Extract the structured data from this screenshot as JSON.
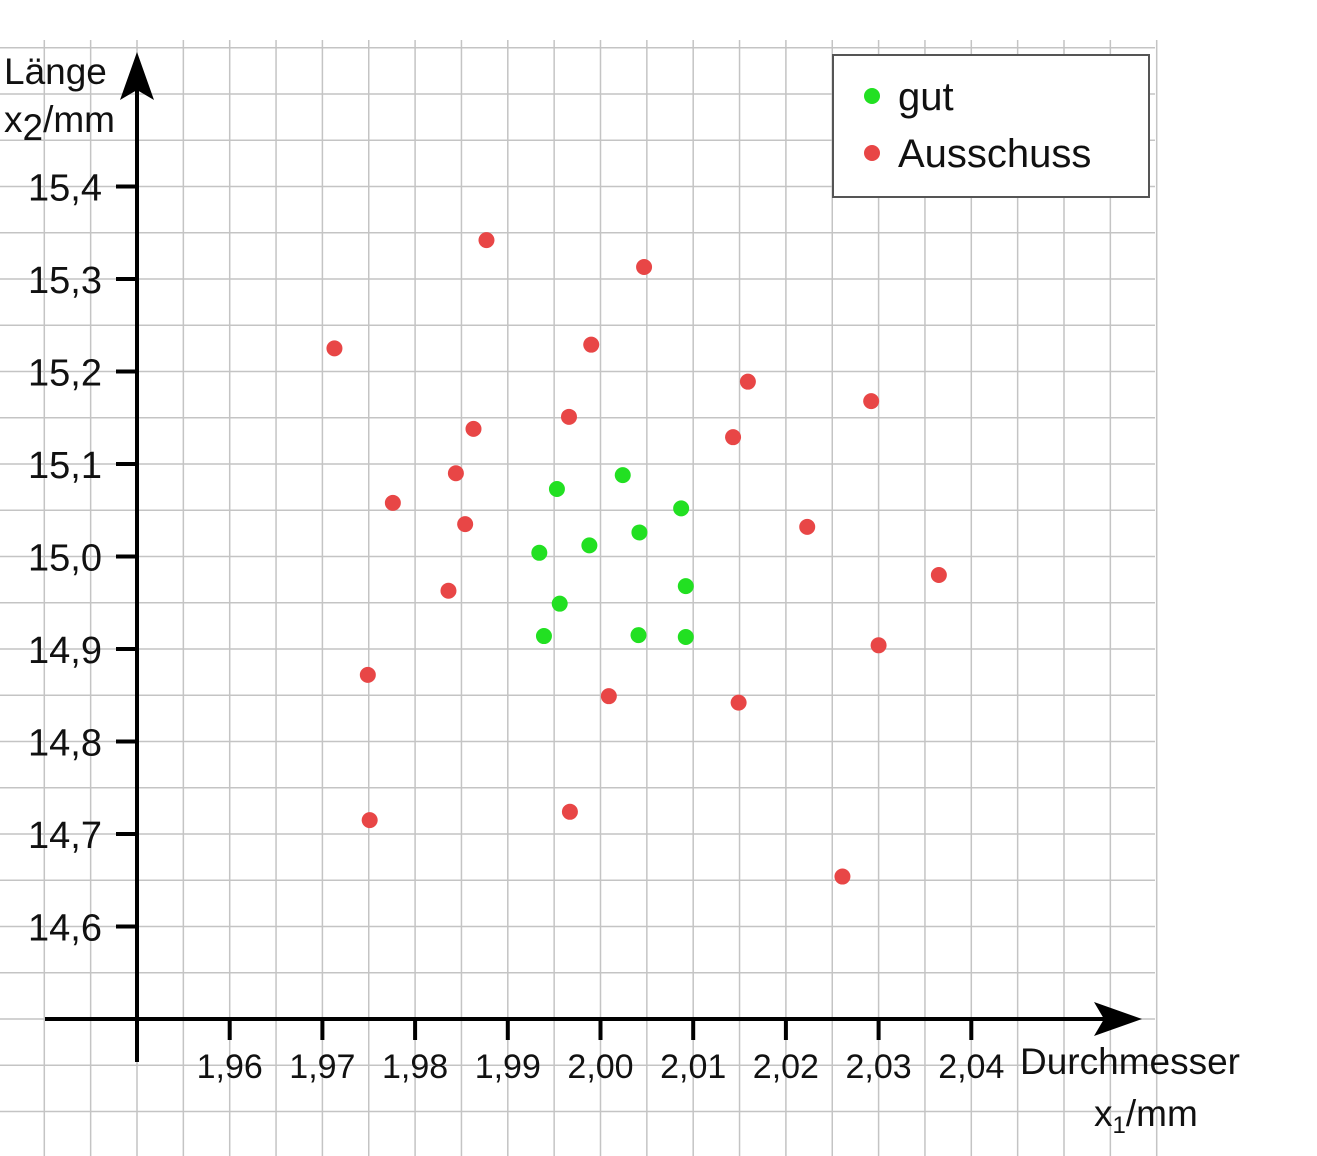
{
  "chart_data": {
    "type": "scatter",
    "title": "",
    "xlabel": {
      "main": "Durchmesser",
      "var": "x",
      "sub": "1",
      "unit": "/mm"
    },
    "ylabel": {
      "main": "Länge",
      "var": "x",
      "sub": "2",
      "unit": "/mm"
    },
    "xlim": [
      1.95,
      2.055
    ],
    "ylim": [
      14.5,
      15.53
    ],
    "x_ticks": [
      1.96,
      1.97,
      1.98,
      1.99,
      2.0,
      2.01,
      2.02,
      2.03,
      2.04
    ],
    "x_tick_labels": [
      "1,96",
      "1,97",
      "1,98",
      "1,99",
      "2,00",
      "2,01",
      "2,02",
      "2,03",
      "2,04"
    ],
    "y_ticks": [
      14.6,
      14.7,
      14.8,
      14.9,
      15.0,
      15.1,
      15.2,
      15.3,
      15.4
    ],
    "y_tick_labels": [
      "14,6",
      "14,7",
      "14,8",
      "14,9",
      "15,0",
      "15,1",
      "15,2",
      "15,3",
      "15,4"
    ],
    "grid": true,
    "legend_position": "top-right",
    "series": [
      {
        "name": "gut",
        "color": "#22e022",
        "points": [
          [
            1.9953,
            15.073
          ],
          [
            2.0024,
            15.088
          ],
          [
            2.0087,
            15.052
          ],
          [
            1.9934,
            15.004
          ],
          [
            1.9988,
            15.012
          ],
          [
            2.0042,
            15.026
          ],
          [
            1.9956,
            14.949
          ],
          [
            2.0092,
            14.968
          ],
          [
            1.9939,
            14.914
          ],
          [
            2.0041,
            14.915
          ],
          [
            2.0092,
            14.913
          ]
        ]
      },
      {
        "name": "Ausschuss",
        "color": "#e84646",
        "points": [
          [
            1.9877,
            15.342
          ],
          [
            2.0047,
            15.313
          ],
          [
            1.9713,
            15.225
          ],
          [
            1.999,
            15.229
          ],
          [
            2.0159,
            15.189
          ],
          [
            2.0292,
            15.168
          ],
          [
            1.9966,
            15.151
          ],
          [
            1.9863,
            15.138
          ],
          [
            2.0143,
            15.129
          ],
          [
            1.9844,
            15.09
          ],
          [
            1.9776,
            15.058
          ],
          [
            1.9854,
            15.035
          ],
          [
            2.0223,
            15.032
          ],
          [
            1.9836,
            14.963
          ],
          [
            2.0365,
            14.98
          ],
          [
            1.9749,
            14.872
          ],
          [
            2.03,
            14.904
          ],
          [
            2.0009,
            14.849
          ],
          [
            2.0149,
            14.842
          ],
          [
            1.9751,
            14.715
          ],
          [
            1.9967,
            14.724
          ],
          [
            2.0261,
            14.654
          ]
        ]
      }
    ]
  }
}
